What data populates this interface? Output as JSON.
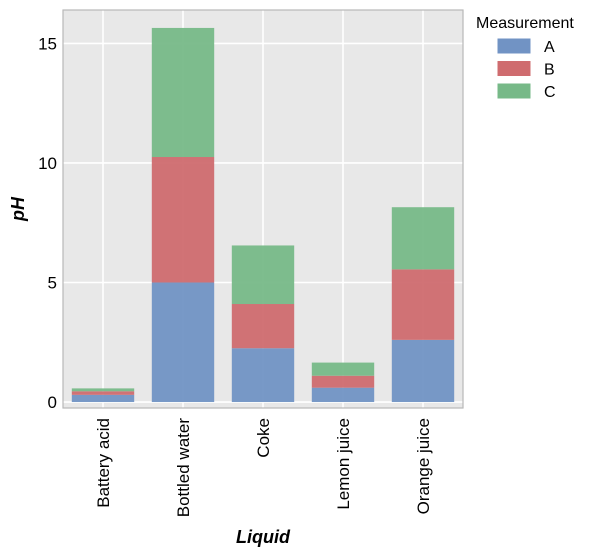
{
  "chart_data": {
    "type": "bar",
    "stacked": true,
    "categories": [
      "Battery acid",
      "Bottled water",
      "Coke",
      "Lemon juice",
      "Orange juice"
    ],
    "series": [
      {
        "name": "A",
        "values": [
          0.3,
          5.0,
          2.25,
          0.6,
          2.6
        ],
        "color": "#7193c4"
      },
      {
        "name": "B",
        "values": [
          0.15,
          5.25,
          1.85,
          0.5,
          2.95
        ],
        "color": "#cf6c6f"
      },
      {
        "name": "C",
        "values": [
          0.12,
          5.4,
          2.45,
          0.55,
          2.6
        ],
        "color": "#77b988"
      }
    ],
    "xlabel": "Liquid",
    "ylabel": "pH",
    "ylim": [
      -0.25,
      16.4
    ],
    "yticks": [
      0,
      5,
      10,
      15
    ],
    "legend": {
      "title": "Measurement",
      "position": "outside-right"
    },
    "grid": true,
    "plot_background": "#e8e8e8"
  }
}
